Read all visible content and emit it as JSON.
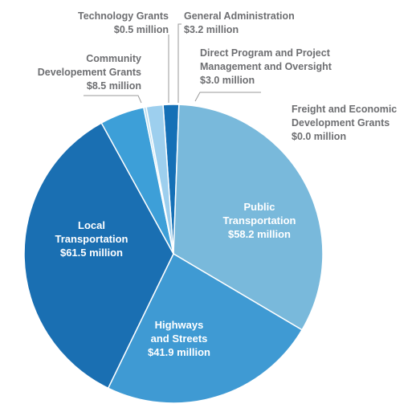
{
  "chart_data": {
    "type": "pie",
    "title": "",
    "slices": [
      {
        "label": [
          "Public",
          "Transportation"
        ],
        "value_label": "$58.2 million",
        "value": 58.2,
        "color": "#79b9db"
      },
      {
        "label": [
          "Highways",
          "and Streets"
        ],
        "value_label": "$41.9 million",
        "value": 41.9,
        "color": "#3f9ad3"
      },
      {
        "label": [
          "Local",
          "Transportation"
        ],
        "value_label": "$61.5 million",
        "value": 61.5,
        "color": "#1a6fb2"
      },
      {
        "label": [
          "Community",
          "Developement Grants"
        ],
        "value_label": "$8.5 million",
        "value": 8.5,
        "color": "#3d9fd8"
      },
      {
        "label": [
          "Technology Grants"
        ],
        "value_label": "$0.5 million",
        "value": 0.5,
        "color": "#b7dcef"
      },
      {
        "label": [
          "General Administration"
        ],
        "value_label": "$3.2 million",
        "value": 3.2,
        "color": "#9dcfee"
      },
      {
        "label": [
          "Direct Program and Project",
          "Management and Oversight"
        ],
        "value_label": "$3.0 million",
        "value": 3.0,
        "color": "#1570b6"
      },
      {
        "label": [
          "Freight and Economic",
          "Development Grants"
        ],
        "value_label": "$0.0 million",
        "value": 0.0,
        "color": "#79b9db"
      }
    ]
  }
}
